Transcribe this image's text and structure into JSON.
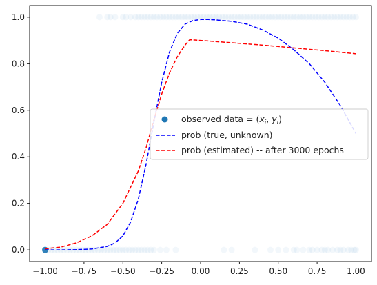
{
  "chart_data": {
    "type": "scatter",
    "title": "",
    "xlabel": "",
    "ylabel": "",
    "xlim": [
      -1.1,
      1.1
    ],
    "ylim": [
      -0.05,
      1.05
    ],
    "x_ticks": [
      -1.0,
      -0.75,
      -0.5,
      -0.25,
      0.0,
      0.25,
      0.5,
      0.75,
      1.0
    ],
    "x_tick_labels": [
      "−1.00",
      "−0.75",
      "−0.50",
      "−0.25",
      "0.00",
      "0.25",
      "0.50",
      "0.75",
      "1.00"
    ],
    "y_ticks": [
      0.0,
      0.2,
      0.4,
      0.6,
      0.8,
      1.0
    ],
    "y_tick_labels": [
      "0.0",
      "0.2",
      "0.4",
      "0.6",
      "0.8",
      "1.0"
    ],
    "grid": false,
    "legend": {
      "placement": "center-right",
      "entries": [
        {
          "label": "observed data = (x_i, y_i)",
          "marker": "dot",
          "color": "#1f77b4"
        },
        {
          "label": "prob (true, unknown)",
          "marker": "dashed-line",
          "color": "#0000ff"
        },
        {
          "label": "prob (estimated) -- after 3000 epochs",
          "marker": "dashed-line",
          "color": "#ff0000"
        }
      ]
    },
    "series": [
      {
        "name": "observed data = (x_i, y_i)",
        "kind": "scatter",
        "color": "#1f77b4",
        "alpha": 0.06,
        "points_y1": [
          -0.65,
          -0.6,
          -0.58,
          -0.55,
          -0.5,
          -0.48,
          -0.45,
          -0.42,
          -0.4,
          -0.38,
          -0.36,
          -0.34,
          -0.32,
          -0.3,
          -0.28,
          -0.26,
          -0.24,
          -0.22,
          -0.2,
          -0.18,
          -0.16,
          -0.14,
          -0.12,
          -0.1,
          -0.08,
          -0.06,
          -0.04,
          -0.02,
          0.0,
          0.02,
          0.04,
          0.06,
          0.08,
          0.1,
          0.12,
          0.14,
          0.16,
          0.18,
          0.2,
          0.22,
          0.24,
          0.26,
          0.28,
          0.3,
          0.32,
          0.34,
          0.36,
          0.38,
          0.4,
          0.42,
          0.44,
          0.46,
          0.48,
          0.5,
          0.52,
          0.54,
          0.56,
          0.58,
          0.6,
          0.62,
          0.64,
          0.66,
          0.68,
          0.7,
          0.72,
          0.74,
          0.76,
          0.78,
          0.8,
          0.82,
          0.84,
          0.86,
          0.88,
          0.9,
          0.92,
          0.94,
          0.96,
          0.98,
          1.0
        ],
        "points_y0": [
          -1.0,
          -1.0,
          -1.0,
          -0.98,
          -0.96,
          -0.94,
          -0.92,
          -0.9,
          -0.88,
          -0.86,
          -0.84,
          -0.82,
          -0.8,
          -0.78,
          -0.76,
          -0.74,
          -0.72,
          -0.7,
          -0.68,
          -0.66,
          -0.64,
          -0.62,
          -0.6,
          -0.58,
          -0.56,
          -0.54,
          -0.52,
          -0.5,
          -0.48,
          -0.46,
          -0.44,
          -0.42,
          -0.4,
          -0.38,
          -0.36,
          -0.34,
          -0.32,
          -0.3,
          -0.26,
          -0.22,
          -0.16,
          0.15,
          0.2,
          0.35,
          0.45,
          0.5,
          0.55,
          0.6,
          0.62,
          0.66,
          0.7,
          0.72,
          0.75,
          0.78,
          0.8,
          0.82,
          0.85,
          0.88,
          0.9,
          0.92,
          0.95,
          0.97,
          0.99,
          1.0
        ]
      },
      {
        "name": "prob (true, unknown)",
        "kind": "line",
        "style": "dashed",
        "color": "#0000ff",
        "x": [
          -1.0,
          -0.9,
          -0.8,
          -0.7,
          -0.6,
          -0.55,
          -0.5,
          -0.45,
          -0.4,
          -0.35,
          -0.3,
          -0.25,
          -0.2,
          -0.15,
          -0.1,
          -0.05,
          0.0,
          0.05,
          0.1,
          0.2,
          0.3,
          0.4,
          0.5,
          0.6,
          0.7,
          0.8,
          0.9,
          1.0
        ],
        "y": [
          0.0,
          0.0,
          0.001,
          0.004,
          0.015,
          0.03,
          0.06,
          0.12,
          0.22,
          0.37,
          0.55,
          0.72,
          0.85,
          0.93,
          0.97,
          0.985,
          0.99,
          0.99,
          0.988,
          0.982,
          0.97,
          0.945,
          0.91,
          0.86,
          0.8,
          0.72,
          0.62,
          0.5
        ]
      },
      {
        "name": "prob (estimated) -- after 3000 epochs",
        "kind": "line",
        "style": "dashed",
        "color": "#ff0000",
        "x": [
          -1.0,
          -0.9,
          -0.8,
          -0.7,
          -0.6,
          -0.5,
          -0.4,
          -0.35,
          -0.3,
          -0.25,
          -0.2,
          -0.15,
          -0.1,
          -0.07,
          0.0,
          0.2,
          0.4,
          0.6,
          0.8,
          1.0
        ],
        "y": [
          0.005,
          0.012,
          0.03,
          0.06,
          0.11,
          0.2,
          0.34,
          0.44,
          0.56,
          0.67,
          0.76,
          0.83,
          0.88,
          0.903,
          0.9,
          0.89,
          0.88,
          0.868,
          0.856,
          0.843
        ]
      }
    ]
  }
}
